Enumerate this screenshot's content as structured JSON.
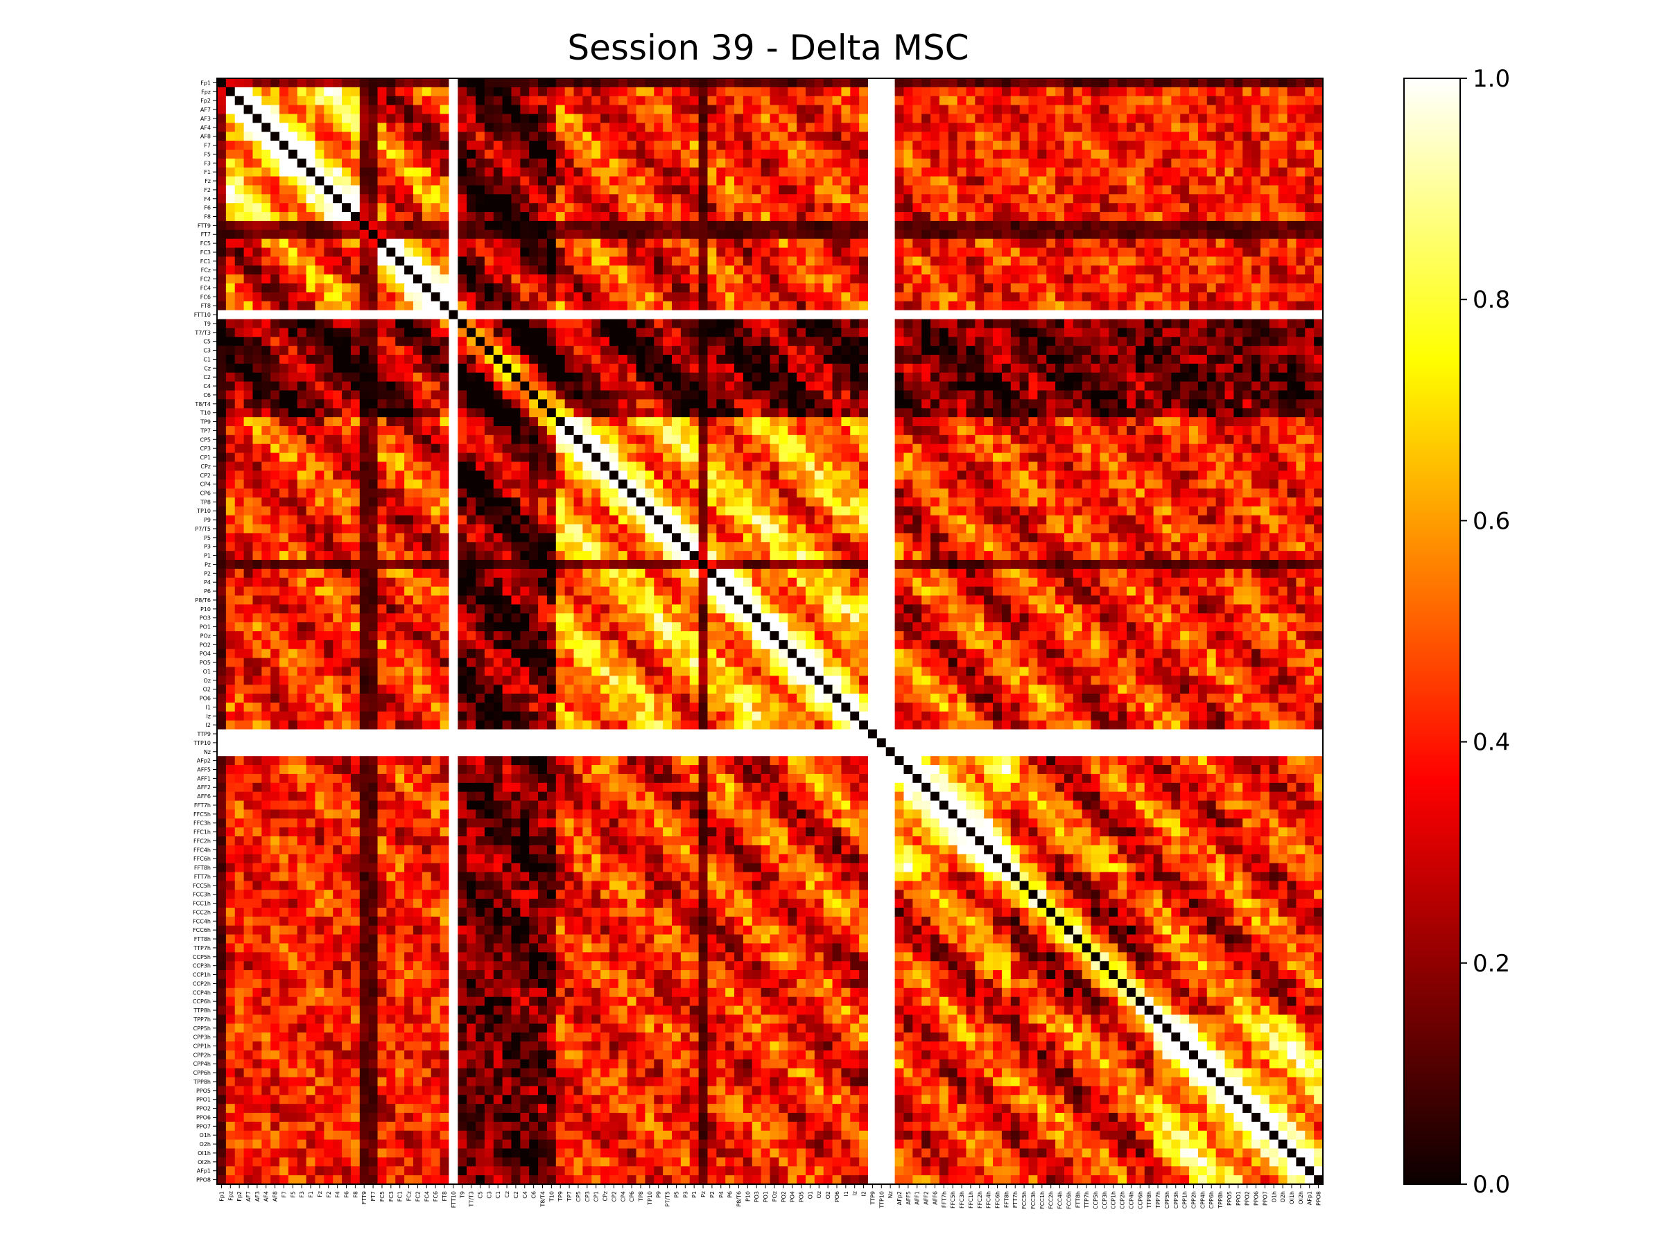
{
  "chart_data": {
    "type": "heatmap",
    "title": "Session 39 - Delta MSC",
    "colormap": "hot",
    "color_range": [
      0.0,
      1.0
    ],
    "colorbar_ticks": [
      "0.0",
      "0.2",
      "0.4",
      "0.6",
      "0.8",
      "1.0"
    ],
    "channels": [
      "Fp1",
      "Fpz",
      "Fp2",
      "AF7",
      "AF3",
      "AF4",
      "AF8",
      "F7",
      "F5",
      "F3",
      "F1",
      "Fz",
      "F2",
      "F4",
      "F6",
      "F8",
      "FTT9",
      "FT7",
      "FC5",
      "FC3",
      "FC1",
      "FCz",
      "FC2",
      "FC4",
      "FC6",
      "FT8",
      "FTT10",
      "T9",
      "T7/T3",
      "C5",
      "C3",
      "C1",
      "Cz",
      "C2",
      "C4",
      "C6",
      "T8/T4",
      "T10",
      "TP9",
      "TP7",
      "CP5",
      "CP3",
      "CP1",
      "CPz",
      "CP2",
      "CP4",
      "CP6",
      "TP8",
      "TP10",
      "P9",
      "P7/T5",
      "P5",
      "P3",
      "P1",
      "Pz",
      "P2",
      "P4",
      "P6",
      "P8/T6",
      "P10",
      "PO3",
      "PO1",
      "POz",
      "PO2",
      "PO4",
      "PO5",
      "O1",
      "Oz",
      "O2",
      "PO6",
      "I1",
      "Iz",
      "I2",
      "TTP9",
      "TTP10",
      "Nz",
      "AFp2",
      "AFF5",
      "AFF1",
      "AFF2",
      "AFF6",
      "FFT7h",
      "FFC5h",
      "FFC3h",
      "FFC1h",
      "FFC2h",
      "FFC4h",
      "FFC6h",
      "FFT8h",
      "FTT7h",
      "FCC5h",
      "FCC3h",
      "FCC1h",
      "FCC2h",
      "FCC4h",
      "FCC6h",
      "FTT8h",
      "TTP7h",
      "CCP5h",
      "CCP3h",
      "CCP1h",
      "CCP2h",
      "CCP4h",
      "CCP6h",
      "TTP8h",
      "TPP7h",
      "CPP5h",
      "CPP3h",
      "CPP1h",
      "CPP2h",
      "CPP4h",
      "CPP6h",
      "TPP8h",
      "PPO5",
      "PPO1",
      "PPO2",
      "PPO6",
      "PPO7",
      "O1h",
      "O2h",
      "OI1h",
      "OI2h",
      "AFp1",
      "PPO8"
    ],
    "diagonal_value": 0.0,
    "missing_channels": [
      "FTT10",
      "TTP9",
      "TTP10",
      "Nz"
    ],
    "missing_value": 1.0,
    "cluster_blocks": [
      {
        "channels": [
          "Fp1",
          "FT8"
        ],
        "mean_coherence": 0.62
      },
      {
        "channels": [
          "FTT9",
          "FT8"
        ],
        "mean_coherence": 0.55
      },
      {
        "channels": [
          "T9",
          "T10"
        ],
        "mean_coherence": 0.08
      },
      {
        "channels": [
          "TP9",
          "I2"
        ],
        "mean_coherence": 0.55
      },
      {
        "channels": [
          "AFp2",
          "FFT8h"
        ],
        "mean_coherence": 0.62
      },
      {
        "channels": [
          "FTT7h",
          "TTP8h"
        ],
        "mean_coherence": 0.25
      },
      {
        "channels": [
          "TPP7h",
          "PPO8"
        ],
        "mean_coherence": 0.6
      }
    ],
    "low_coherence_channels": [
      "FTT9",
      "FT7",
      "Pz",
      "Fp1"
    ],
    "grid": false
  }
}
